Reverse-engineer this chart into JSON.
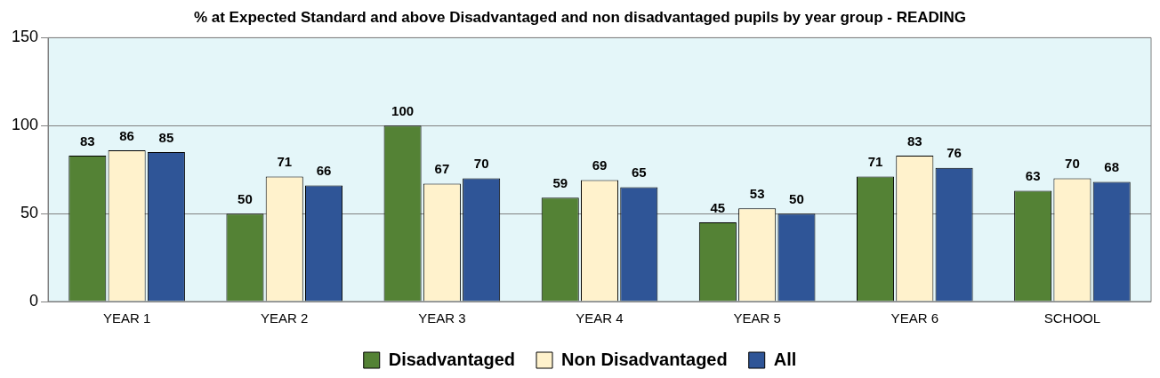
{
  "chart_data": {
    "type": "bar",
    "title": "% at Expected Standard and above Disadvantaged and non disadvantaged pupils by year group - READING",
    "categories": [
      "YEAR 1",
      "YEAR 2",
      "YEAR 3",
      "YEAR 4",
      "YEAR 5",
      "YEAR 6",
      "SCHOOL"
    ],
    "series": [
      {
        "name": "Disadvantaged",
        "color": "#548235",
        "values": [
          83,
          50,
          100,
          59,
          45,
          71,
          63
        ]
      },
      {
        "name": "Non Disadvantaged",
        "color": "#fff2cc",
        "values": [
          86,
          71,
          67,
          69,
          53,
          83,
          70
        ]
      },
      {
        "name": "All",
        "color": "#2f5597",
        "values": [
          85,
          66,
          70,
          65,
          50,
          76,
          68
        ]
      }
    ],
    "ylim": [
      0,
      150
    ],
    "yticks": [
      0,
      50,
      100,
      150
    ],
    "grid": "y",
    "legend": "bottom",
    "data_labels": true
  }
}
